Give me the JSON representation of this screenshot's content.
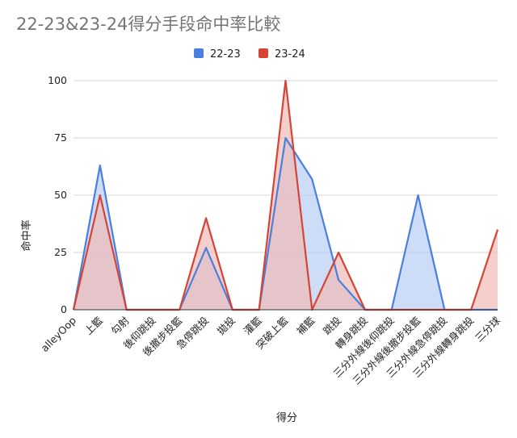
{
  "chart_data": {
    "type": "area",
    "title": "22-23&23-24得分手段命中率比較",
    "xlabel": "得分",
    "ylabel": "命中率",
    "ylim": [
      0,
      100
    ],
    "yticks": [
      "0",
      "25",
      "50",
      "75",
      "100"
    ],
    "grid": true,
    "legend_position": "top",
    "categories": [
      "alleyOop",
      "上籃",
      "勾射",
      "後仰跳投",
      "後撤步投籃",
      "急停跳投",
      "拋投",
      "灌籃",
      "突破上籃",
      "補籃",
      "跳投",
      "轉身跳投",
      "三分外線後仰跳投",
      "三分外線後撤步投籃",
      "三分外線急停跳投",
      "三分外線轉身跳投",
      "三分球"
    ],
    "series": [
      {
        "name": "22-23",
        "color": "#4a7fe0",
        "fill": "#b8cdf3",
        "values": [
          0,
          63,
          0,
          0,
          0,
          27,
          0,
          0,
          75,
          57,
          13,
          0,
          0,
          50,
          0,
          0,
          0
        ]
      },
      {
        "name": "23-24",
        "color": "#d64436",
        "fill": "#f0bbb5",
        "values": [
          0,
          50,
          0,
          0,
          0,
          40,
          0,
          0,
          100,
          0,
          25,
          0,
          0,
          0,
          0,
          0,
          35
        ]
      }
    ]
  }
}
